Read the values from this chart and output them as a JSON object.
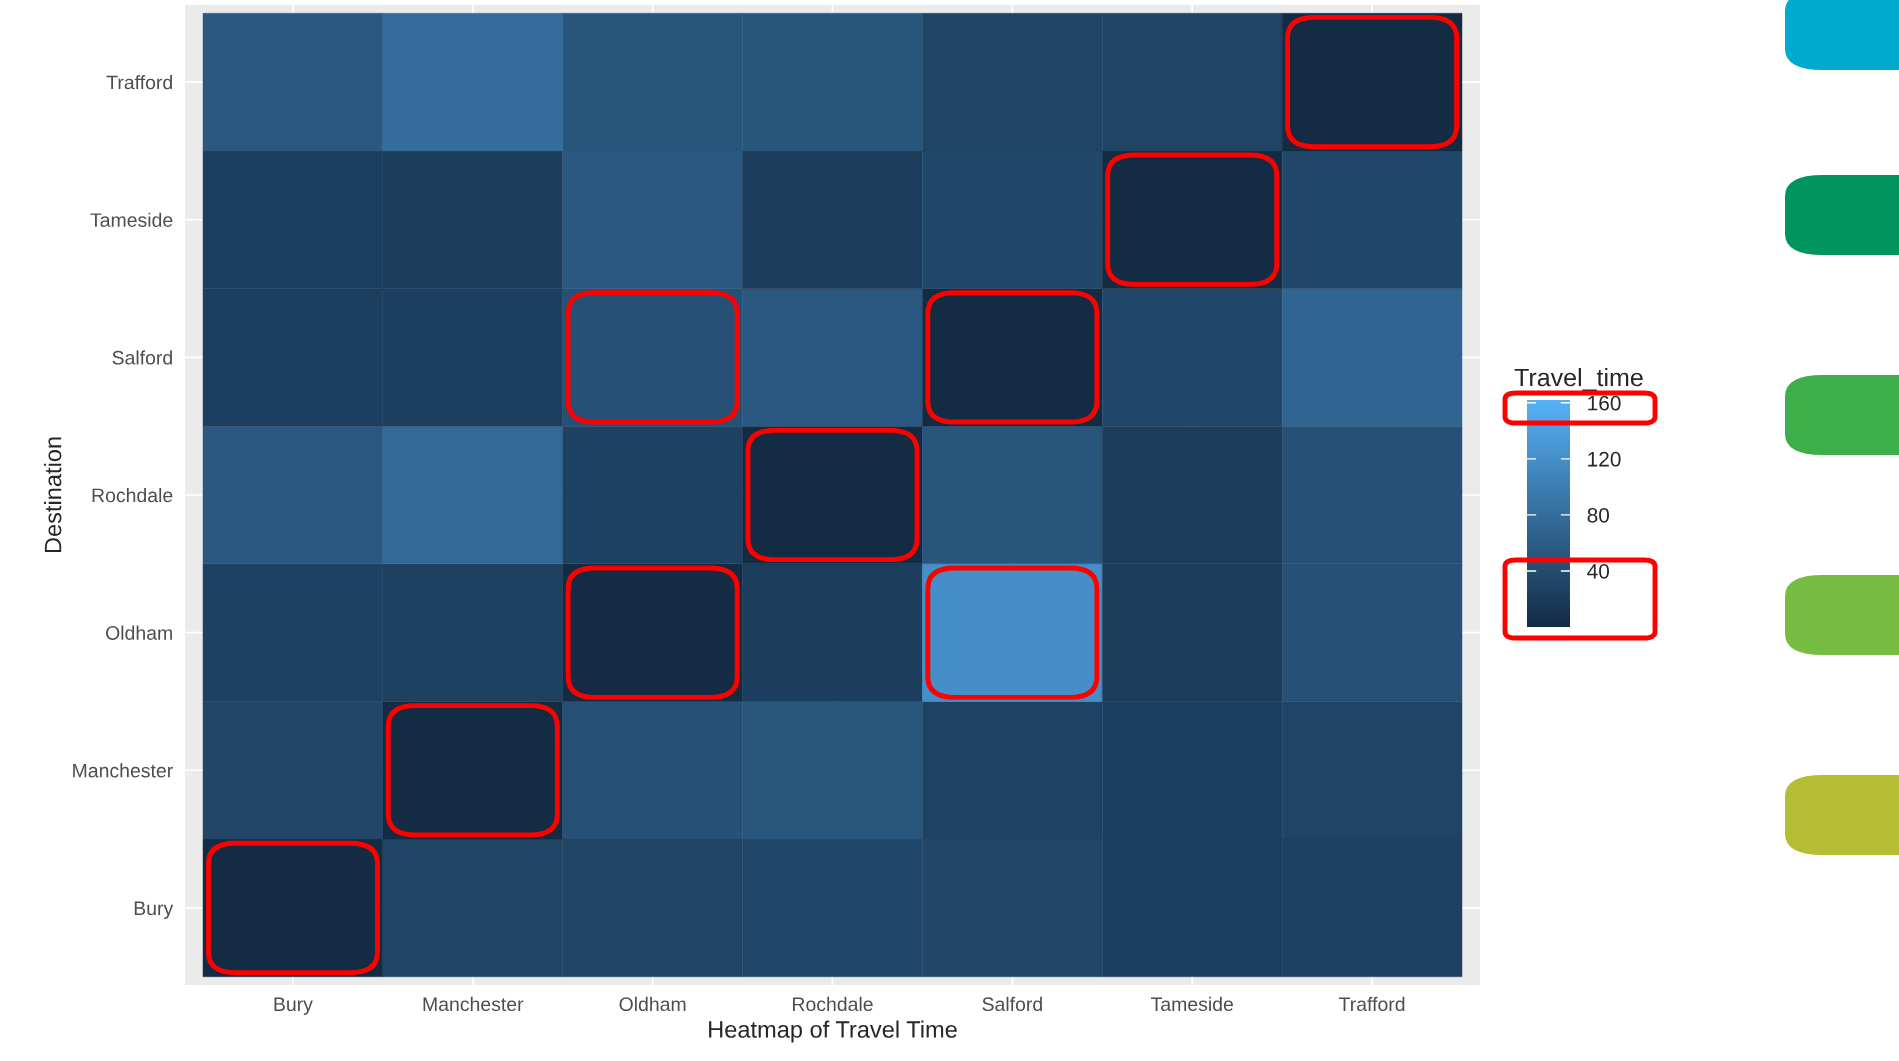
{
  "chart_data": {
    "type": "heatmap",
    "xlabel": "Heatmap of Travel Time",
    "ylabel": "Destination",
    "clabel": "Travel_time",
    "categories": [
      "Bury",
      "Manchester",
      "Oldham",
      "Rochdale",
      "Salford",
      "Tameside",
      "Trafford"
    ],
    "y_categories": [
      "Trafford",
      "Tameside",
      "Salford",
      "Rochdale",
      "Oldham",
      "Manchester",
      "Bury"
    ],
    "cells": [
      [
        55,
        80,
        50,
        50,
        30,
        30,
        0
      ],
      [
        25,
        22,
        55,
        22,
        35,
        0,
        35
      ],
      [
        25,
        25,
        45,
        55,
        0,
        35,
        70
      ],
      [
        55,
        75,
        27,
        0,
        50,
        22,
        45
      ],
      [
        27,
        27,
        0,
        22,
        120,
        22,
        45
      ],
      [
        33,
        0,
        45,
        52,
        28,
        25,
        30
      ],
      [
        0,
        30,
        30,
        35,
        33,
        25,
        27
      ]
    ],
    "clim": [
      0,
      162
    ],
    "cticks": [
      40,
      80,
      120,
      160
    ],
    "grid": true
  }
}
